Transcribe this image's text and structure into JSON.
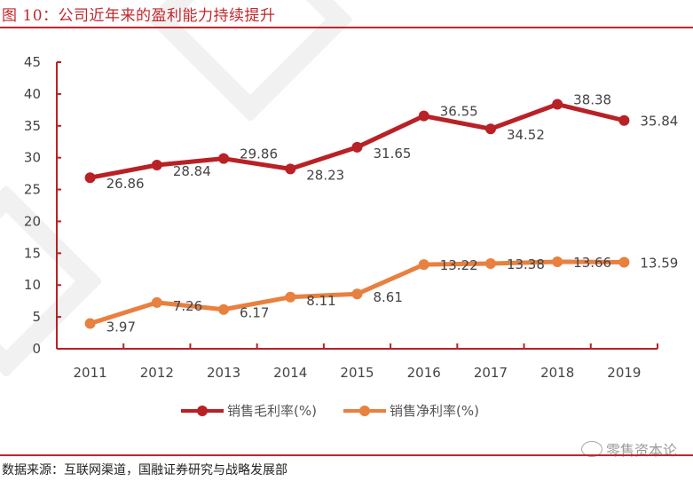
{
  "title": "图 10：公司近年来的盈利能力持续提升",
  "source": "数据来源：互联网渠道，国融证券研究与战略发展部",
  "watermark": "零售资本论",
  "colors": {
    "gross": "#b82125",
    "net": "#e8803f",
    "axis": "#b82125",
    "title": "#c0272d"
  },
  "chart_data": {
    "type": "line",
    "title": "",
    "xlabel": "",
    "ylabel": "",
    "categories": [
      "2011",
      "2012",
      "2013",
      "2014",
      "2015",
      "2016",
      "2017",
      "2018",
      "2019"
    ],
    "ylim": [
      0,
      45
    ],
    "yticks": [
      "0",
      "5",
      "10",
      "15",
      "20",
      "25",
      "30",
      "35",
      "40",
      "45"
    ],
    "grid": false,
    "legend_position": "bottom",
    "series": [
      {
        "name": "销售毛利率(%)",
        "values": [
          26.86,
          28.84,
          29.86,
          28.23,
          31.65,
          36.55,
          34.52,
          38.38,
          35.84
        ],
        "labels": [
          "26.86",
          "28.84",
          "29.86",
          "28.23",
          "31.65",
          "36.55",
          "34.52",
          "38.38",
          "35.84"
        ]
      },
      {
        "name": "销售净利率(%)",
        "values": [
          3.97,
          7.26,
          6.17,
          8.11,
          8.61,
          13.22,
          13.38,
          13.66,
          13.59
        ],
        "labels": [
          "3.97",
          "7.26",
          "6.17",
          "8.11",
          "8.61",
          "13.22",
          "13.38",
          "13.66",
          "13.59"
        ]
      }
    ]
  }
}
